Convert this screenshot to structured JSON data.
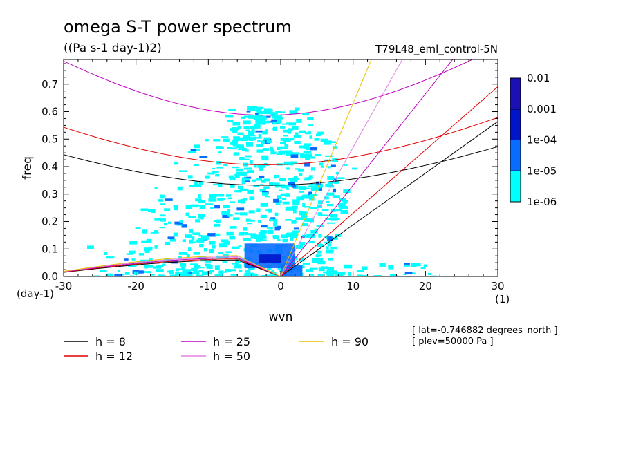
{
  "chart_data": {
    "type": "heatmap",
    "title": "omega S-T power spectrum",
    "subtitle": "((Pa s-1 day-1)2)",
    "run_label": "T79L48_eml_control-5N",
    "xlabel": "wvn",
    "ylabel": "freq",
    "x_units": "(1)",
    "y_units": "(day-1)",
    "xlim": [
      -30,
      30
    ],
    "ylim": [
      0,
      0.79
    ],
    "x_ticks": [
      -30,
      -20,
      -10,
      0,
      10,
      20,
      30
    ],
    "x_tick_labels": [
      "-30",
      "-20",
      "-10",
      "0",
      "10",
      "20",
      "30"
    ],
    "y_ticks": [
      0,
      0.1,
      0.2,
      0.3,
      0.4,
      0.5,
      0.6,
      0.7
    ],
    "y_tick_labels": [
      "0.0",
      "0.1",
      "0.2",
      "0.3",
      "0.4",
      "0.5",
      "0.6",
      "0.7"
    ],
    "colorbar": {
      "levels": [
        "1e-06",
        "1e-05",
        "1e-04",
        "0.001",
        "0.01"
      ],
      "colors": [
        "#00ffff",
        "#0a6bff",
        "#0014c8",
        "#1a10b4",
        "#5518a8"
      ]
    },
    "shaded_regions": [
      {
        "level": "1e-05",
        "x": [
          -5,
          2
        ],
        "y": [
          0.03,
          0.12
        ]
      },
      {
        "level": "1e-05",
        "x": [
          0,
          3
        ],
        "y": [
          0.0,
          0.04
        ]
      },
      {
        "level": "1e-04",
        "x": [
          -3,
          0
        ],
        "y": [
          0.05,
          0.08
        ]
      }
    ],
    "dispersion_curves": [
      {
        "name": "h =  8",
        "color": "#000000"
      },
      {
        "name": "h = 12",
        "color": "#e00000"
      },
      {
        "name": "h = 25",
        "color": "#c000c0"
      },
      {
        "name": "h = 50",
        "color": "#e080e0"
      },
      {
        "name": "h = 90",
        "color": "#e8c000"
      }
    ],
    "legend": [
      {
        "label": "h =  8",
        "color": "#000000"
      },
      {
        "label": "h = 25",
        "color": "#c000c0"
      },
      {
        "label": "h = 90",
        "color": "#e8c000"
      },
      {
        "label": "h = 12",
        "color": "#e00000"
      },
      {
        "label": "h = 50",
        "color": "#e080e0"
      }
    ],
    "annotations": [
      "[ lat=-0.746882 degrees_north ]",
      "[ plev=50000 Pa ]"
    ]
  }
}
